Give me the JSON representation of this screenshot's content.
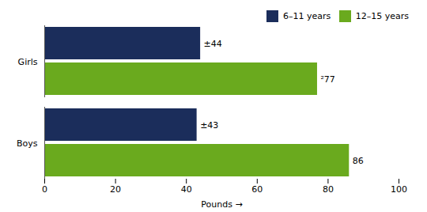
{
  "chart_data": {
    "type": "bar",
    "orientation": "horizontal",
    "categories": [
      "Boys",
      "Girls"
    ],
    "series": [
      {
        "name": "6–11 years",
        "color": "#1b2d5b",
        "values": [
          43,
          44
        ],
        "value_labels": [
          "±43",
          "±44"
        ]
      },
      {
        "name": "12–15 years",
        "color": "#6aaa1e",
        "values": [
          86,
          77
        ],
        "value_labels": [
          "86",
          "²77"
        ]
      }
    ],
    "xlabel": "Pounds",
    "xlim": [
      0,
      100
    ],
    "xticks": [
      0,
      20,
      40,
      60,
      80,
      100
    ],
    "grid": false,
    "legend": "upper right",
    "data_labels": true
  }
}
